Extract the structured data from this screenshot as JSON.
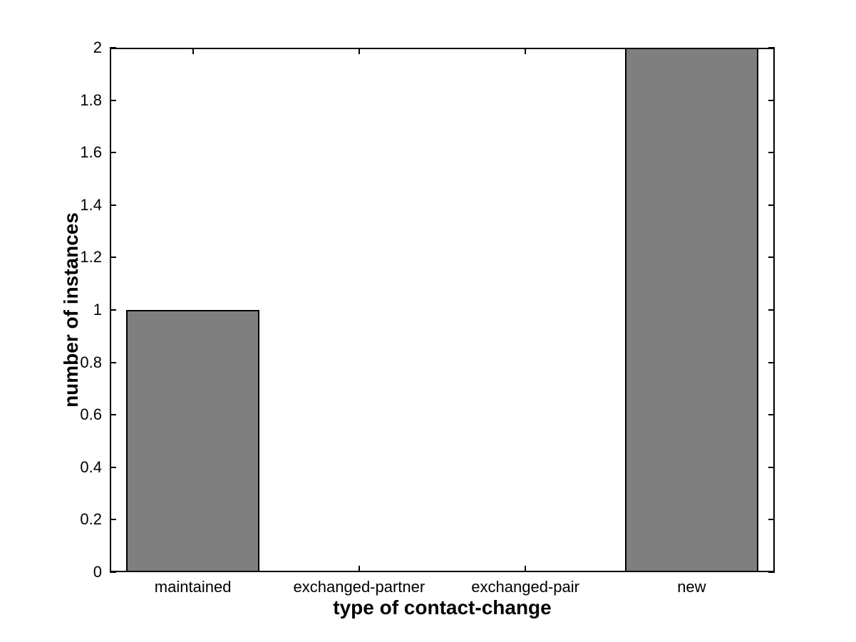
{
  "chart_data": {
    "type": "bar",
    "title": "",
    "categories": [
      "maintained",
      "exchanged-partner",
      "exchanged-pair",
      "new"
    ],
    "values": [
      1,
      0,
      0,
      2
    ],
    "xlabel": "type of contact-change",
    "ylabel": "number of instances",
    "ylim": [
      0,
      2
    ],
    "ytick_step": 0.2,
    "ytick_labels": [
      "0",
      "0.2",
      "0.4",
      "0.6",
      "0.8",
      "1",
      "1.2",
      "1.4",
      "1.6",
      "1.8",
      "2"
    ],
    "bar_width_fraction": 0.8,
    "bar_color": "#7f7f7f",
    "bar_edge_color": "#000000",
    "axis_color": "#000000",
    "background_color": "#ffffff",
    "grid": false,
    "legend": null,
    "tick_direction": "in",
    "box": true
  }
}
